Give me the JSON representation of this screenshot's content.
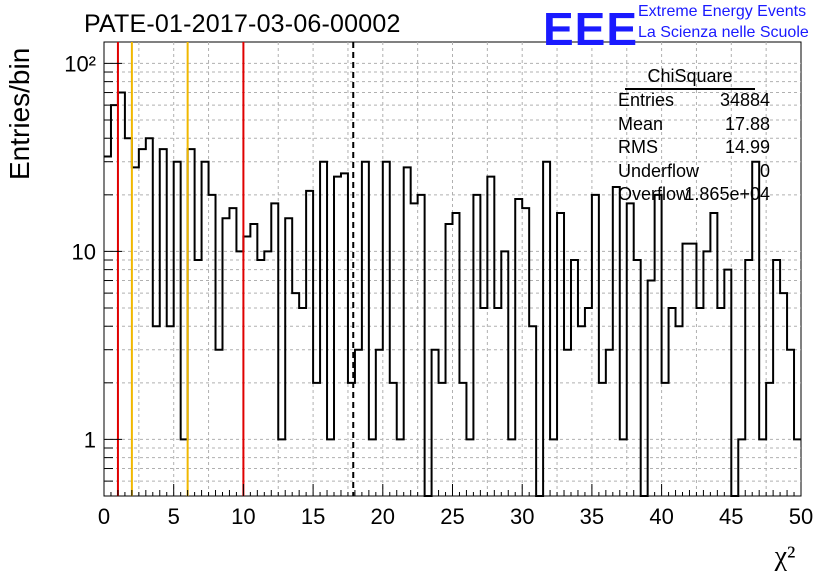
{
  "title": "PATE-01-2017-03-06-00002",
  "logo": {
    "acronym": "EEE",
    "line1": "Extreme Energy Events",
    "line2": "La Scienza nelle Scuole",
    "color": "#1a1aff"
  },
  "stats_box": {
    "title": "ChiSquare",
    "rows": [
      {
        "key": "Entries",
        "value": "34884"
      },
      {
        "key": "Mean",
        "value": "17.88"
      },
      {
        "key": "RMS",
        "value": "14.99"
      },
      {
        "key": "Underflow",
        "value": "0"
      },
      {
        "key": "Overflow",
        "value": "1.865e+04"
      }
    ]
  },
  "chart_data": {
    "type": "histogram-step",
    "xlabel": "χ²",
    "ylabel": "Entries/bin",
    "xlim": [
      0,
      50
    ],
    "ylim": [
      0.5,
      130
    ],
    "yscale": "log",
    "grid": true,
    "x_ticks": [
      "0",
      "5",
      "10",
      "15",
      "20",
      "25",
      "30",
      "35",
      "40",
      "45",
      "50"
    ],
    "y_ticks": [
      {
        "value": 1,
        "label": "1"
      },
      {
        "value": 10,
        "label": "10"
      },
      {
        "value": 100,
        "label": "10²"
      }
    ],
    "bin_width": 0.5,
    "values": [
      32,
      60,
      70,
      40,
      28,
      35,
      40,
      4,
      35,
      4,
      30,
      1,
      35,
      9,
      30,
      20,
      3,
      15,
      17,
      10,
      12,
      14,
      9,
      10,
      18,
      1,
      15,
      6,
      5,
      21,
      2,
      30,
      1,
      25,
      26,
      2,
      3,
      30,
      1,
      3,
      30,
      2,
      1,
      28,
      18,
      20,
      0.1,
      3,
      2,
      14,
      16,
      2,
      1,
      20,
      5,
      25,
      5,
      10,
      1,
      19,
      17,
      4,
      0.1,
      30,
      1,
      16,
      3,
      9,
      4,
      5,
      20,
      2,
      3,
      22,
      1,
      18,
      9,
      0.1,
      7,
      20,
      2,
      5,
      4,
      11,
      11,
      5,
      10,
      16,
      5,
      8,
      0.1,
      1,
      9,
      30,
      1,
      2,
      9,
      6,
      3,
      1
    ],
    "vertical_lines": [
      {
        "x": 1,
        "color": "#e00000",
        "style": "solid"
      },
      {
        "x": 2,
        "color": "#f0b800",
        "style": "solid"
      },
      {
        "x": 6,
        "color": "#f0b800",
        "style": "solid"
      },
      {
        "x": 10,
        "color": "#e00000",
        "style": "solid"
      },
      {
        "x": 17.88,
        "color": "#000000",
        "style": "dashed"
      }
    ]
  }
}
